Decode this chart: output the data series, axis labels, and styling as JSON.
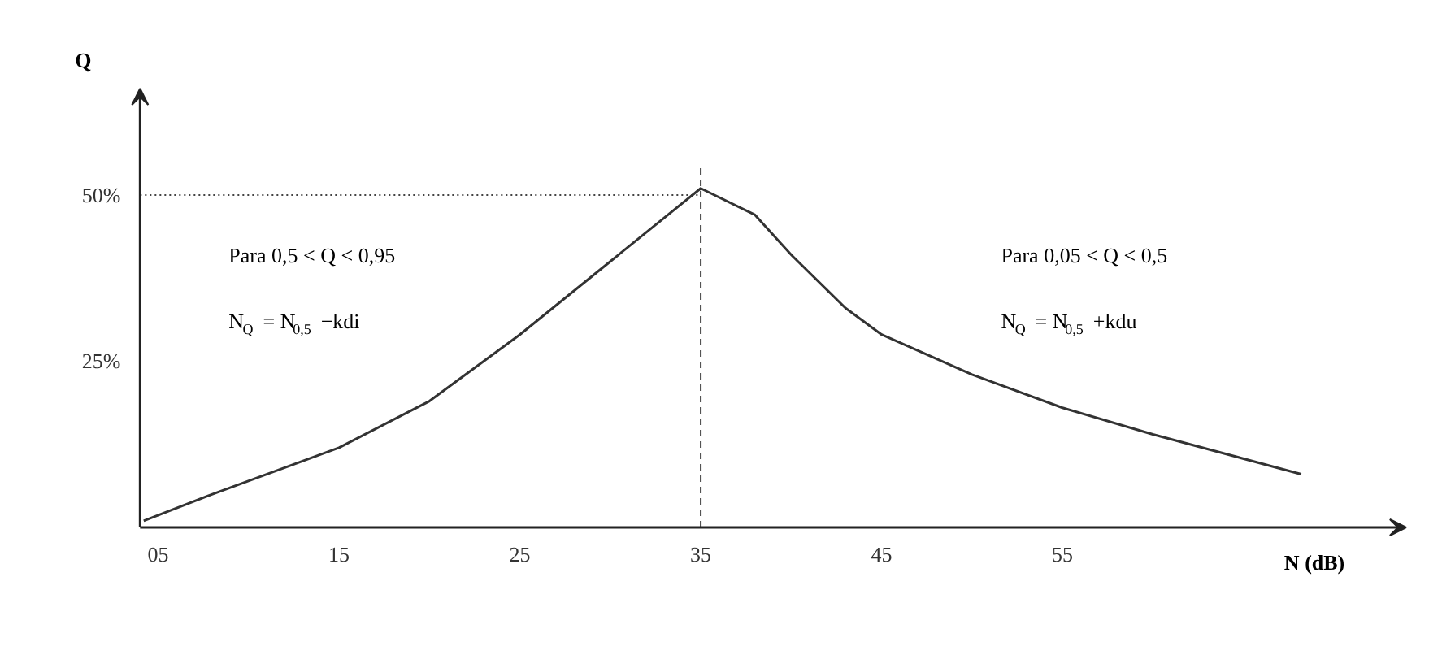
{
  "chart_data": {
    "type": "line",
    "xlabel": "N (dB)",
    "ylabel": "Q",
    "x": [
      4.2,
      8,
      15,
      20,
      25,
      30,
      35,
      38,
      40,
      43,
      45,
      50,
      55,
      60,
      68.2
    ],
    "values": [
      1,
      5,
      12,
      19,
      29,
      40,
      51,
      47,
      41,
      33,
      29,
      23,
      18,
      14,
      8
    ],
    "color": "#333333",
    "xlim": [
      4,
      74
    ],
    "ylim": [
      0,
      66
    ],
    "xticks": [
      {
        "value": 5,
        "label": "05"
      },
      15,
      25,
      35,
      45,
      55
    ],
    "yticks": [
      {
        "value": 25,
        "label": "25%"
      },
      {
        "value": 50,
        "label": "50%"
      }
    ],
    "grid": false,
    "marker": "none",
    "line_style": "solid",
    "ref_lines": [
      {
        "axis": "y",
        "value": 50,
        "label": null,
        "line_style": "dotted"
      },
      {
        "axis": "x",
        "value": 35,
        "label": null,
        "line_style": "dashed"
      }
    ],
    "annotations": [
      "Para 0,5 < Q < 0,95",
      "N$_{Q}$ = N$_{0,5}$ −kdi",
      "Para 0,05 < Q < 0,5",
      "N$_{Q}$ = N$_{0,5}$ +kdu"
    ]
  }
}
